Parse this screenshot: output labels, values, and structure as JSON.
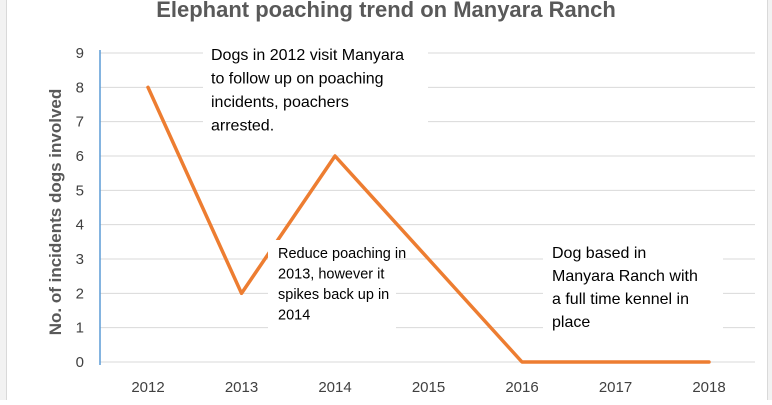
{
  "chart_data": {
    "type": "line",
    "title": "Elephant poaching trend on Manyara Ranch",
    "xlabel": "",
    "ylabel": "No. of incidents dogs involved",
    "categories": [
      "2012",
      "2013",
      "2014",
      "2015",
      "2016",
      "2017",
      "2018"
    ],
    "series": [
      {
        "values": [
          8,
          2,
          6,
          3,
          0,
          0,
          0
        ],
        "color": "#ed7d31"
      }
    ],
    "ylim": [
      0,
      9
    ],
    "yticks": [
      0,
      1,
      2,
      3,
      4,
      5,
      6,
      7,
      8,
      9
    ],
    "grid": "horizontal",
    "annotations": [
      {
        "lines": [
          "Dogs in 2012 visit Manyara",
          "to follow up on poaching",
          "incidents, poachers",
          "arrested."
        ]
      },
      {
        "lines": [
          "Reduce poaching in",
          "2013, however it",
          "spikes back up in",
          "2014"
        ]
      },
      {
        "lines": [
          "Dog based in",
          "Manyara Ranch with",
          "a full time kennel in",
          "place"
        ]
      }
    ]
  }
}
